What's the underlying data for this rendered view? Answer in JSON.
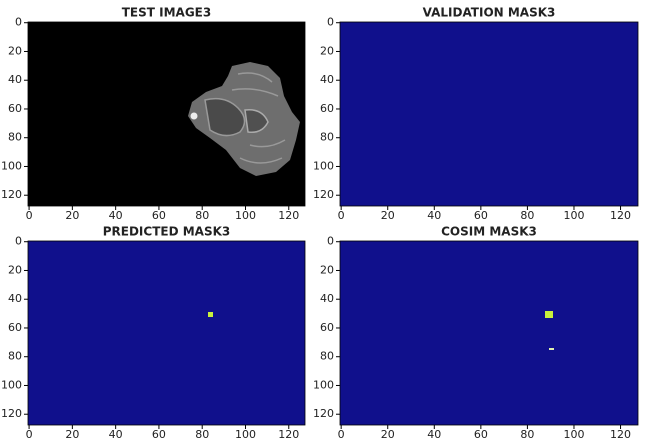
{
  "chart_data": [
    {
      "type": "image",
      "title": "TEST IMAGE3",
      "xlim": [
        -0.5,
        127.5
      ],
      "ylim": [
        127.5,
        -0.5
      ],
      "xticks": [
        0,
        20,
        40,
        60,
        80,
        100,
        120
      ],
      "yticks": [
        0,
        20,
        40,
        60,
        80,
        100,
        120
      ]
    },
    {
      "type": "image",
      "title": "VALIDATION MASK3",
      "xlim": [
        -0.5,
        127.5
      ],
      "ylim": [
        127.5,
        -0.5
      ],
      "xticks": [
        0,
        20,
        40,
        60,
        80,
        100,
        120
      ],
      "yticks": [
        0,
        20,
        40,
        60,
        80,
        100,
        120
      ]
    },
    {
      "type": "image",
      "title": "PREDICTED MASK3",
      "xlim": [
        -0.5,
        127.5
      ],
      "ylim": [
        127.5,
        -0.5
      ],
      "xticks": [
        0,
        20,
        40,
        60,
        80,
        100,
        120
      ],
      "yticks": [
        0,
        20,
        40,
        60,
        80,
        100,
        120
      ]
    },
    {
      "type": "image",
      "title": "COSIM MASK3",
      "xlim": [
        -0.5,
        127.5
      ],
      "ylim": [
        127.5,
        -0.5
      ],
      "xticks": [
        0,
        20,
        40,
        60,
        80,
        100,
        120
      ],
      "yticks": [
        0,
        20,
        40,
        60,
        80,
        100,
        120
      ]
    }
  ]
}
